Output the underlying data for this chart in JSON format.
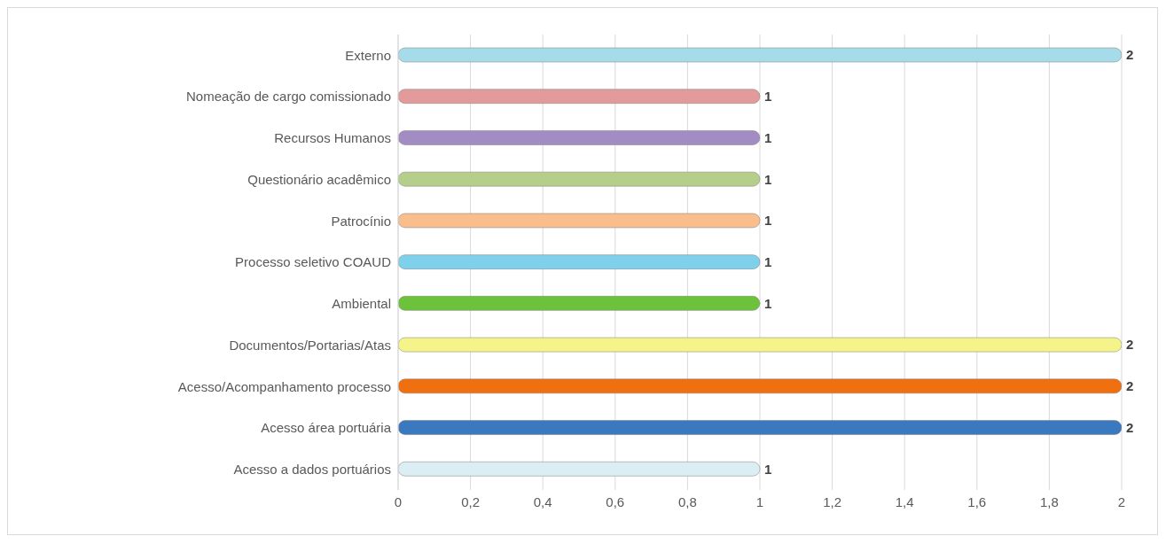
{
  "chart_data": {
    "type": "bar",
    "orientation": "horizontal",
    "categories": [
      "Externo",
      "Nomeação de cargo comissionado",
      "Recursos Humanos",
      "Questionário acadêmico",
      "Patrocínio",
      "Processo seletivo COAUD",
      "Ambiental",
      "Documentos/Portarias/Atas",
      "Acesso/Acompanhamento processo",
      "Acesso área portuária",
      "Acesso a dados portuários"
    ],
    "values": [
      2,
      1,
      1,
      1,
      1,
      1,
      1,
      2,
      2,
      2,
      1
    ],
    "colors": [
      "#a6dcea",
      "#e39a9a",
      "#a38bc4",
      "#b5cf8a",
      "#f9be8c",
      "#7fd0ea",
      "#6cc23a",
      "#f4f48a",
      "#f07010",
      "#3a78c0",
      "#dbeef4"
    ],
    "xlim": [
      0,
      2
    ],
    "xticks": [
      0,
      {
        "value": 0.2,
        "label": "0,2"
      },
      {
        "value": 0.4,
        "label": "0,4"
      },
      {
        "value": 0.6,
        "label": "0,6"
      },
      {
        "value": 0.8,
        "label": "0,8"
      },
      1,
      {
        "value": 1.2,
        "label": "1,2"
      },
      {
        "value": 1.4,
        "label": "1,4"
      },
      {
        "value": 1.6,
        "label": "1,6"
      },
      {
        "value": 1.8,
        "label": "1,8"
      },
      2
    ],
    "grid": "x",
    "data_labels": true
  }
}
